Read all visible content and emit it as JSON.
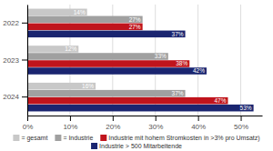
{
  "chart_data": {
    "type": "bar",
    "orientation": "horizontal",
    "categories": [
      "2022",
      "2023",
      "2024"
    ],
    "series": [
      {
        "name": "= gesamt",
        "color": "#c8c8c8",
        "values": [
          14,
          12,
          16
        ],
        "value_labels": [
          "14%",
          "12%",
          "16%"
        ]
      },
      {
        "name": "= Industrie",
        "color": "#a0a0a0",
        "values": [
          27,
          33,
          37
        ],
        "value_labels": [
          "27%",
          "33%",
          "37%"
        ]
      },
      {
        "name": "Industrie mit hohem Stromkosten in >3% pro Umsatz)",
        "color": "#c0141c",
        "values": [
          27,
          38,
          47
        ],
        "value_labels": [
          "27%",
          "38%",
          "47%"
        ]
      },
      {
        "name": "Industrie > 500 Mitarbeitende",
        "color": "#1a2570",
        "values": [
          37,
          42,
          53
        ],
        "value_labels": [
          "37%",
          "42%",
          "53%"
        ]
      }
    ],
    "xlim": [
      0,
      55
    ],
    "xticks": [
      {
        "value": 0,
        "label": "0%"
      },
      {
        "value": 10,
        "label": "10%"
      },
      {
        "value": 20,
        "label": "20%"
      },
      {
        "value": 30,
        "label": "30%"
      },
      {
        "value": 40,
        "label": "40%"
      },
      {
        "value": 50,
        "label": "50%"
      }
    ],
    "grid": true,
    "data_labels": true,
    "legend": "bottom"
  }
}
